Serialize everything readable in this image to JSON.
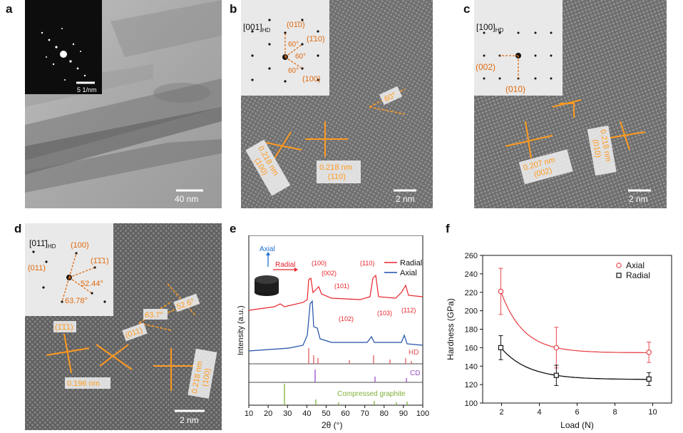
{
  "labels": {
    "a": "a",
    "b": "b",
    "c": "c",
    "d": "d",
    "e": "e",
    "f": "f"
  },
  "panel_a": {
    "scale_main": "40 nm",
    "scale_inset": "5 1/nm"
  },
  "panel_b": {
    "zone": "[001]",
    "zone_sub": "HD",
    "inset_labels": [
      "(01̄0)",
      "(1̄10)",
      "(100)",
      "60°",
      "60°",
      "60°"
    ],
    "angle": "60°",
    "d1": "0.218 nm",
    "hkl1": "(100)",
    "d2": "0.218 nm",
    "hkl2": "(110)",
    "scale": "2 nm"
  },
  "panel_c": {
    "zone": "[100]",
    "zone_sub": "HD",
    "inset_labels": [
      "(002)",
      "(010)"
    ],
    "d1": "0.207 nm",
    "hkl1": "(002)",
    "d2": "0.218 nm",
    "hkl2": "(010)",
    "scale": "2 nm"
  },
  "panel_d": {
    "zone": "[011̄]",
    "zone_sub": "HD",
    "inset_labels": [
      "(100)",
      "(011)",
      "(1̄1̄1)",
      "52.44°",
      "63.78°"
    ],
    "angles": [
      "63.7°",
      "52.6°"
    ],
    "hkl_a": "(1̄1̄1)",
    "hkl_b": "(011)",
    "d1": "0.196 nm",
    "d2": "0.218 nm",
    "hkl_c": "(100)",
    "scale": "2 nm"
  },
  "panel_e": {
    "axial_label": "Axial",
    "radial_label": "Radial",
    "legend": [
      "Radial",
      "Axial"
    ],
    "peaks": [
      "(100)",
      "(002)",
      "(101)",
      "(110)",
      "(102)",
      "(103)",
      "(112)"
    ],
    "peak_sub": "HD",
    "ref_labels": [
      "HD",
      "CD",
      "Compressed graphite"
    ],
    "xlabel": "2θ (°)",
    "ylabel": "Intensity (a.u.)",
    "colors": {
      "radial": "#e8232b",
      "axial": "#1f4fa8",
      "hd": "#e05050",
      "cd": "#9b4fc8",
      "graphite": "#7fb03a"
    }
  },
  "chart_data": {
    "type": "scatter",
    "xlabel": "Load (N)",
    "ylabel": "Hardness (GPa)",
    "xlim": [
      1,
      11
    ],
    "ylim": [
      100,
      260
    ],
    "xticks": [
      2,
      4,
      6,
      8,
      10
    ],
    "yticks": [
      100,
      120,
      140,
      160,
      180,
      200,
      220,
      240,
      260
    ],
    "legend_position": "top-right",
    "series": [
      {
        "name": "Axial",
        "color": "#e8494f",
        "marker": "circle",
        "x": [
          1.96,
          4.9,
          9.8
        ],
        "y": [
          221,
          160,
          155
        ],
        "err": [
          25,
          22,
          11
        ]
      },
      {
        "name": "Radial",
        "color": "#111111",
        "marker": "square",
        "x": [
          1.96,
          4.9,
          9.8
        ],
        "y": [
          160,
          130,
          126
        ],
        "err": [
          13,
          11,
          7
        ]
      }
    ]
  }
}
